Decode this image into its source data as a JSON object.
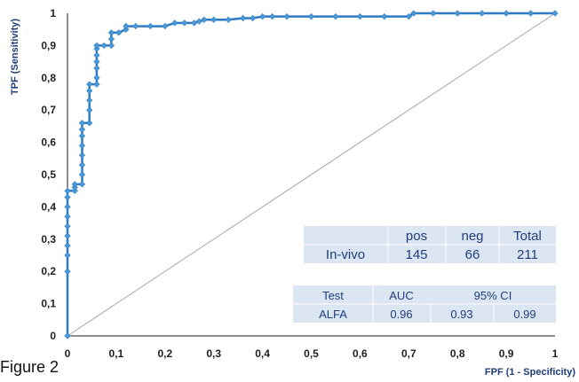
{
  "caption": "Figure 2",
  "colors": {
    "curve": "#2e7bc4",
    "marker_fill": "#4a9ad8",
    "diagonal": "#a6a6a6",
    "table_fill": "#dce6f2",
    "text": "#1f3d7a"
  },
  "summary_table": {
    "headers": [
      "",
      "pos",
      "neg",
      "Total"
    ],
    "row": [
      "In-vivo",
      "145",
      "66",
      "211"
    ]
  },
  "auc_table": {
    "headers": [
      "Test",
      "AUC",
      "95% CI"
    ],
    "row": [
      "ALFA",
      "0.96",
      "0.93",
      "0.99"
    ]
  },
  "chart_data": {
    "type": "line",
    "xlabel": "FPF (1 - Specificity)",
    "ylabel": "TPF (Sensitivity)",
    "xlim": [
      0,
      1
    ],
    "ylim": [
      0,
      1
    ],
    "x_ticks": [
      "0",
      "0,1",
      "0,2",
      "0,3",
      "0,4",
      "0,5",
      "0,6",
      "0,7",
      "0,8",
      "0,9",
      "1"
    ],
    "y_ticks": [
      "0",
      "0,1",
      "0,2",
      "0,3",
      "0,4",
      "0,5",
      "0,6",
      "0,7",
      "0,8",
      "0,9",
      "1"
    ],
    "grid": false,
    "legend": "none",
    "series": [
      {
        "x": [
          0,
          0,
          0,
          0,
          0,
          0,
          0,
          0,
          0,
          0,
          0.015,
          0.015,
          0.015,
          0.03,
          0.03,
          0.03,
          0.03,
          0.03,
          0.03,
          0.03,
          0.03,
          0.045,
          0.045,
          0.045,
          0.045,
          0.045,
          0.06,
          0.06,
          0.06,
          0.06,
          0.06,
          0.06,
          0.06,
          0.075,
          0.09,
          0.09,
          0.09,
          0.105,
          0.12,
          0.12,
          0.14,
          0.17,
          0.2,
          0.22,
          0.24,
          0.26,
          0.27,
          0.28,
          0.3,
          0.33,
          0.36,
          0.38,
          0.4,
          0.42,
          0.45,
          0.5,
          0.55,
          0.6,
          0.65,
          0.7,
          0.71,
          0.75,
          0.8,
          0.85,
          0.9,
          0.95,
          1
        ],
        "y": [
          0,
          0.2,
          0.25,
          0.28,
          0.31,
          0.34,
          0.37,
          0.4,
          0.43,
          0.45,
          0.45,
          0.46,
          0.47,
          0.47,
          0.5,
          0.53,
          0.56,
          0.59,
          0.62,
          0.64,
          0.66,
          0.66,
          0.7,
          0.73,
          0.76,
          0.78,
          0.78,
          0.8,
          0.83,
          0.85,
          0.87,
          0.89,
          0.9,
          0.9,
          0.9,
          0.92,
          0.94,
          0.94,
          0.95,
          0.96,
          0.96,
          0.96,
          0.96,
          0.97,
          0.97,
          0.97,
          0.975,
          0.98,
          0.98,
          0.98,
          0.985,
          0.985,
          0.99,
          0.99,
          0.99,
          0.99,
          0.99,
          0.99,
          0.99,
          0.99,
          1,
          1,
          1,
          1,
          1,
          1,
          1
        ]
      },
      {
        "x": [
          0,
          1
        ],
        "y": [
          0,
          1
        ]
      }
    ]
  }
}
